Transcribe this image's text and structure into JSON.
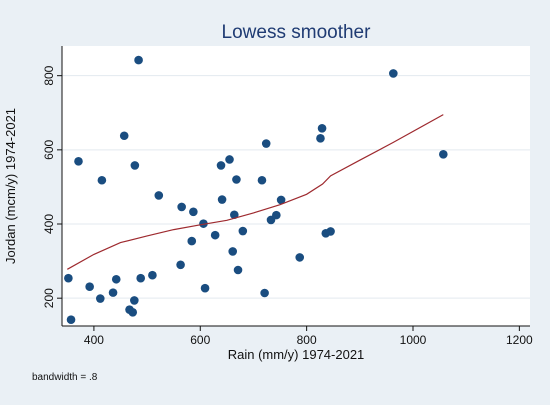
{
  "chart_data": {
    "type": "scatter",
    "title": "Lowess smoother",
    "xlabel": "Rain (mm/y) 1974-2021",
    "ylabel": "Jordan (mcm/y) 1974-2021",
    "note": "bandwidth = .8",
    "xlim": [
      340,
      1220
    ],
    "ylim": [
      125,
      880
    ],
    "xticks": [
      400,
      600,
      800,
      1000,
      1200
    ],
    "yticks": [
      200,
      400,
      600,
      800
    ],
    "grid": true,
    "colors": {
      "points": "#1a4d80",
      "line": "#9e2a2f",
      "title": "#1f3b73",
      "plot_bg": "#ffffff",
      "outer_bg": "#eaf0f5",
      "grid": "#e3e9ef"
    },
    "series": [
      {
        "type": "scatter",
        "x": [
          352,
          357,
          371,
          392,
          412,
          415,
          436,
          442,
          457,
          467,
          473,
          476,
          477,
          484,
          488,
          510,
          522,
          563,
          565,
          584,
          587,
          606,
          609,
          628,
          639,
          641,
          655,
          661,
          664,
          668,
          671,
          680,
          716,
          721,
          724,
          733,
          743,
          752,
          787,
          826,
          829,
          836,
          845,
          963,
          1057
        ],
        "y": [
          254,
          142,
          569,
          231,
          199,
          518,
          215,
          251,
          638,
          169,
          162,
          194,
          558,
          842,
          254,
          262,
          477,
          290,
          446,
          354,
          433,
          401,
          227,
          370,
          558,
          466,
          574,
          326,
          425,
          520,
          276,
          381,
          518,
          214,
          617,
          411,
          424,
          465,
          310,
          631,
          658,
          375,
          380,
          806,
          588
        ]
      },
      {
        "type": "line",
        "x": [
          350,
          400,
          450,
          500,
          550,
          600,
          650,
          700,
          750,
          800,
          830,
          845,
          900,
          963,
          1057
        ],
        "y": [
          278,
          318,
          350,
          368,
          385,
          398,
          410,
          430,
          452,
          480,
          508,
          530,
          572,
          620,
          695
        ]
      }
    ]
  }
}
